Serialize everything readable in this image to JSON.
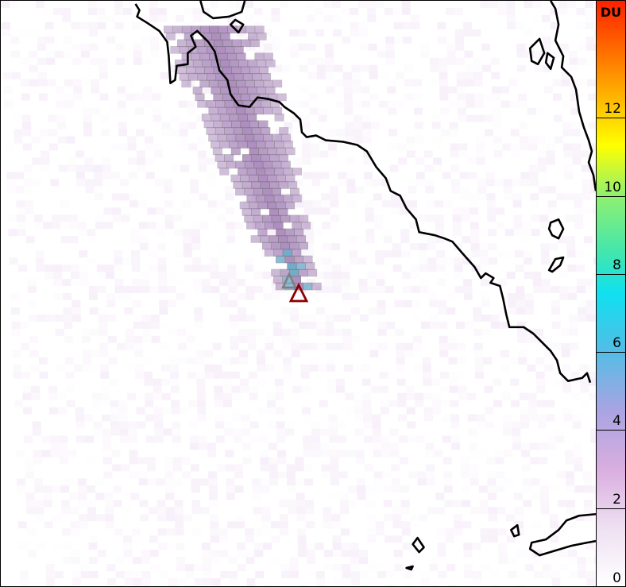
{
  "colorbar": {
    "unit": "DU",
    "ticks": [
      "0",
      "2",
      "4",
      "6",
      "8",
      "10",
      "12"
    ],
    "range": [
      0,
      15
    ],
    "colors": [
      "#ffffff",
      "#eee0f2",
      "#d9aee0",
      "#a9a4e2",
      "#55bce6",
      "#10e0f0",
      "#40e6b0",
      "#90f070",
      "#ffff00",
      "#ffa500",
      "#ff2000"
    ]
  },
  "map": {
    "plume_color": "#a07cb4",
    "plume_peak_color": "#5a9ec0",
    "coastline_color": "#000000",
    "volcano_marker": {
      "icon": "triangle-icon",
      "color": "#8b0000"
    },
    "prior_marker": {
      "icon": "triangle-icon",
      "color": "#808080"
    }
  }
}
